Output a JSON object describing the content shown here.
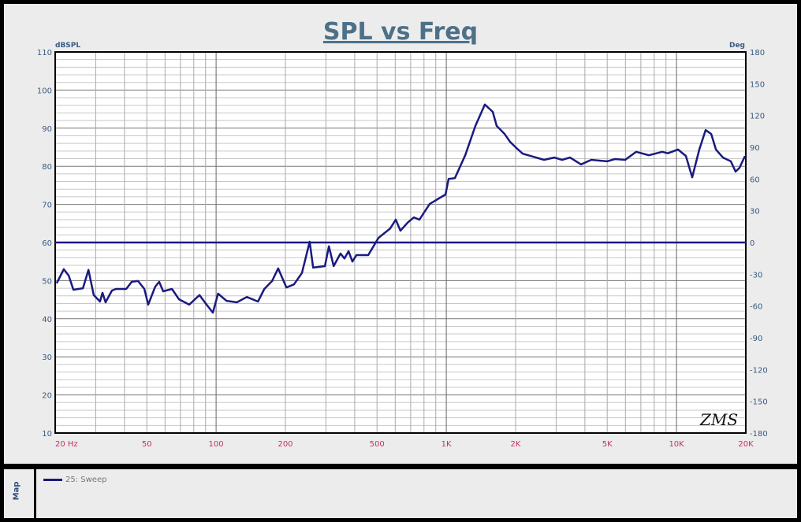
{
  "chart_data": {
    "type": "line",
    "title": "SPL vs Freq",
    "ylabel": "dBSPL",
    "y2label": "Deg",
    "xscale": "log",
    "xlim": [
      20,
      20000
    ],
    "ylim": [
      10,
      110
    ],
    "y2lim": [
      -180,
      180
    ],
    "grid": true,
    "x_ticks": [
      20,
      50,
      100,
      200,
      500,
      1000,
      2000,
      5000,
      10000,
      20000
    ],
    "x_tick_labels": [
      "20 Hz",
      "50",
      "100",
      "200",
      "500",
      "1K",
      "2K",
      "5K",
      "10K",
      "20K"
    ],
    "y_ticks": [
      110,
      100,
      90,
      80,
      70,
      60,
      50,
      40,
      30,
      20,
      10
    ],
    "y2_ticks": [
      180,
      150,
      120,
      90,
      60,
      30,
      0,
      -30,
      -60,
      -90,
      -120,
      -150,
      -180
    ],
    "series": [
      {
        "name": "25: Sweep",
        "axis": "left",
        "color": "#1a1a80",
        "x": [
          20.3,
          21.8,
          22.9,
          24.0,
          26.4,
          27.9,
          29.4,
          31.3,
          32.1,
          33.1,
          35.3,
          36.7,
          40.7,
          43.0,
          45.8,
          48.8,
          50.7,
          54.4,
          56.6,
          58.9,
          64.3,
          69.0,
          76.4,
          84.7,
          90.9,
          96.8,
          102,
          111,
          123,
          136,
          152,
          162,
          175,
          186,
          202,
          218,
          236,
          255,
          264,
          297,
          309,
          324,
          347,
          361,
          376,
          391,
          407,
          458,
          507,
          571,
          603,
          632,
          679,
          723,
          764,
          847,
          992,
          1023,
          1090,
          1208,
          1338,
          1470,
          1591,
          1655,
          1791,
          1892,
          2016,
          2147,
          2324,
          2658,
          2944,
          3186,
          3446,
          3848,
          4265,
          4994,
          5403,
          5985,
          6684,
          7584,
          8671,
          9163,
          10152,
          10985,
          11702,
          12563,
          13380,
          14143,
          14829,
          15916,
          17215,
          18050,
          18777,
          19843
        ],
        "y": [
          49.3,
          53.0,
          51.3,
          47.6,
          48.0,
          52.8,
          46.2,
          44.5,
          46.8,
          44.3,
          47.4,
          47.8,
          47.8,
          49.7,
          49.9,
          47.8,
          43.7,
          48.4,
          49.7,
          47.2,
          47.8,
          45.1,
          43.7,
          46.2,
          43.7,
          41.6,
          46.6,
          44.7,
          44.3,
          45.7,
          44.5,
          47.8,
          49.9,
          53.2,
          48.2,
          49.0,
          52.0,
          60.2,
          53.4,
          53.8,
          59.0,
          53.8,
          57.1,
          55.8,
          57.7,
          55.0,
          56.7,
          56.7,
          61.2,
          63.7,
          66.0,
          63.1,
          65.2,
          66.6,
          66.0,
          70.1,
          72.6,
          76.7,
          76.9,
          82.9,
          90.6,
          96.2,
          94.3,
          90.6,
          88.5,
          86.4,
          84.8,
          83.3,
          82.7,
          81.7,
          82.3,
          81.7,
          82.3,
          80.5,
          81.7,
          81.3,
          81.9,
          81.7,
          83.8,
          82.9,
          83.8,
          83.4,
          84.4,
          82.7,
          77.1,
          84.4,
          89.5,
          88.5,
          84.4,
          82.3,
          81.3,
          78.6,
          79.6,
          82.7
        ]
      },
      {
        "axis": "right",
        "color": "#1a1a80",
        "x": [
          20,
          20000
        ],
        "y": [
          0,
          0
        ]
      }
    ],
    "annotations": [
      "ZMS"
    ]
  },
  "legend": {
    "tab_label": "Map",
    "items": [
      "25: Sweep"
    ]
  }
}
